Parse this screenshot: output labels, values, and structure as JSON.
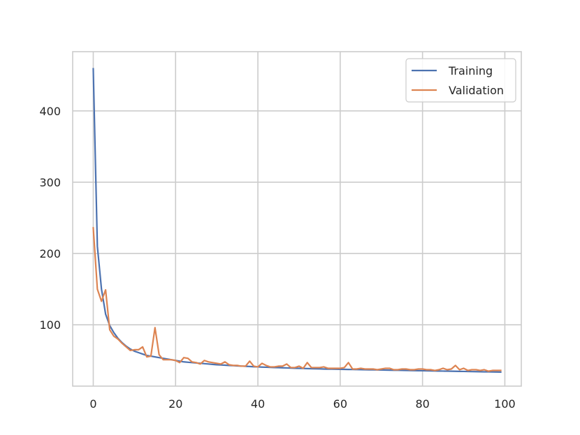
{
  "chart_data": {
    "type": "line",
    "title": "",
    "xlabel": "",
    "ylabel": "",
    "xlim": [
      -5,
      104
    ],
    "ylim": [
      14,
      483
    ],
    "xticks": [
      0,
      20,
      40,
      60,
      80,
      100
    ],
    "yticks": [
      100,
      200,
      300,
      400
    ],
    "grid": true,
    "legend": "top-right",
    "colors": {
      "Training": "#4c72b0",
      "Validation": "#dd8452",
      "grid": "#cccccc",
      "frame": "#cccccc"
    },
    "series": [
      {
        "name": "Training",
        "x": [
          0,
          1,
          2,
          3,
          4,
          5,
          6,
          7,
          8,
          9,
          10,
          11,
          12,
          13,
          14,
          15,
          16,
          17,
          18,
          19,
          20,
          21,
          22,
          23,
          24,
          25,
          26,
          27,
          28,
          29,
          30,
          31,
          32,
          33,
          34,
          35,
          36,
          37,
          38,
          39,
          40,
          41,
          42,
          43,
          44,
          45,
          46,
          47,
          48,
          49,
          50,
          51,
          52,
          53,
          54,
          55,
          56,
          57,
          58,
          59,
          60,
          61,
          62,
          63,
          64,
          65,
          66,
          67,
          68,
          69,
          70,
          71,
          72,
          73,
          74,
          75,
          76,
          77,
          78,
          79,
          80,
          81,
          82,
          83,
          84,
          85,
          86,
          87,
          88,
          89,
          90,
          91,
          92,
          93,
          94,
          95,
          96,
          97,
          98,
          99
        ],
        "y": [
          459,
          210,
          150,
          115,
          99,
          89,
          81,
          75,
          70,
          66,
          63,
          61,
          59,
          57,
          56,
          55,
          54,
          53,
          52,
          51,
          50,
          49,
          48,
          47.5,
          47,
          46.5,
          46,
          45.5,
          45,
          44.5,
          44,
          43.7,
          43.4,
          43,
          42.7,
          42.4,
          42.1,
          41.8,
          41.5,
          41.2,
          41,
          40.7,
          40.5,
          40.3,
          40.1,
          39.9,
          39.7,
          39.5,
          39.3,
          39.1,
          39,
          38.8,
          38.6,
          38.5,
          38.3,
          38.2,
          38,
          37.9,
          37.8,
          37.7,
          37.6,
          37.5,
          37.4,
          37.3,
          37.2,
          37.1,
          37,
          36.9,
          36.8,
          36.7,
          36.6,
          36.5,
          36.4,
          36.3,
          36.2,
          36.1,
          36,
          35.9,
          35.8,
          35.7,
          35.6,
          35.5,
          35.4,
          35.3,
          35.2,
          35.1,
          35,
          34.9,
          34.8,
          34.7,
          34.6,
          34.5,
          34.4,
          34.3,
          34.2,
          34.1,
          34,
          33.9,
          33.8,
          33.7
        ]
      },
      {
        "name": "Validation",
        "x": [
          0,
          1,
          2,
          3,
          4,
          5,
          6,
          7,
          8,
          9,
          10,
          11,
          12,
          13,
          14,
          15,
          16,
          17,
          18,
          19,
          20,
          21,
          22,
          23,
          24,
          25,
          26,
          27,
          28,
          29,
          30,
          31,
          32,
          33,
          34,
          35,
          36,
          37,
          38,
          39,
          40,
          41,
          42,
          43,
          44,
          45,
          46,
          47,
          48,
          49,
          50,
          51,
          52,
          53,
          54,
          55,
          56,
          57,
          58,
          59,
          60,
          61,
          62,
          63,
          64,
          65,
          66,
          67,
          68,
          69,
          70,
          71,
          72,
          73,
          74,
          75,
          76,
          77,
          78,
          79,
          80,
          81,
          82,
          83,
          84,
          85,
          86,
          87,
          88,
          89,
          90,
          91,
          92,
          93,
          94,
          95,
          96,
          97,
          98,
          99
        ],
        "y": [
          236,
          150,
          133,
          149,
          93,
          84,
          80,
          74,
          69,
          64,
          65,
          65,
          69,
          55,
          56,
          96,
          58,
          51,
          51,
          51,
          50,
          47,
          54,
          53,
          48,
          47,
          45,
          50,
          48,
          47,
          46,
          45,
          48,
          44,
          43,
          43,
          42,
          42,
          49,
          42,
          41,
          46,
          43,
          41,
          41,
          42,
          42,
          45,
          40,
          40,
          42,
          39,
          47,
          40,
          40,
          40,
          41,
          39,
          39,
          39,
          39,
          40,
          47,
          38,
          38,
          39,
          38,
          38,
          38,
          37,
          38,
          39,
          39,
          37,
          37,
          38,
          38,
          37,
          37,
          38,
          38,
          37,
          37,
          36,
          37,
          39,
          37,
          38,
          43,
          37,
          39,
          36,
          37,
          37,
          36,
          37,
          35,
          36,
          36,
          36
        ]
      }
    ]
  }
}
